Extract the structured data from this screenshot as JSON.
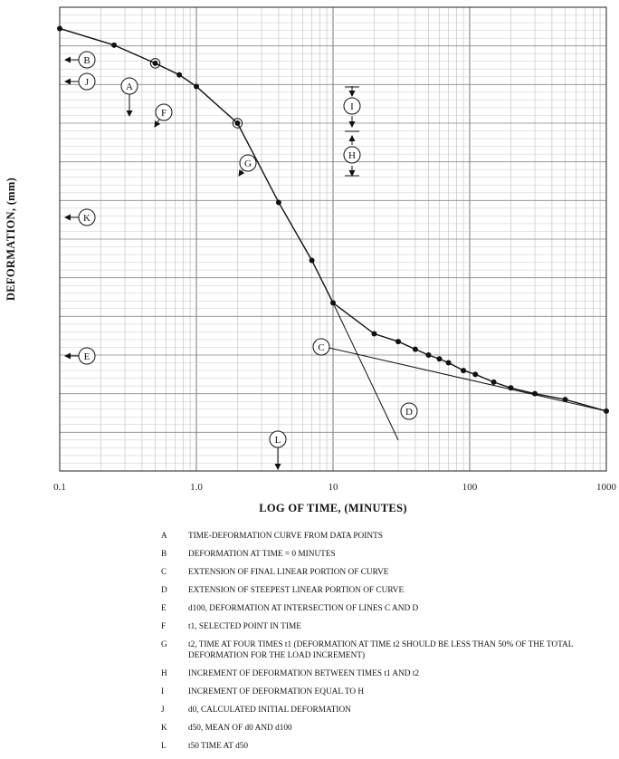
{
  "chart_data": {
    "type": "line",
    "x_scale": "log",
    "xlim": [
      0.1,
      1000
    ],
    "xticks": [
      "0.1",
      "1.0",
      "10",
      "100",
      "1000"
    ],
    "xlabel": "LOG OF TIME, (MINUTES)",
    "ylabel": "DEFORMATION, (mm)",
    "grid": true,
    "series": [
      {
        "points": [
          [
            0.1,
            0.55
          ],
          [
            0.25,
            0.98
          ],
          [
            0.5,
            1.45
          ],
          [
            0.75,
            1.75
          ],
          [
            1.0,
            2.05
          ],
          [
            2.0,
            3.0
          ],
          [
            4.0,
            5.05
          ],
          [
            7.0,
            6.55
          ],
          [
            10.0,
            7.65
          ],
          [
            20.0,
            8.45
          ],
          [
            30.0,
            8.65
          ],
          [
            40.0,
            8.85
          ],
          [
            50.0,
            9.0
          ],
          [
            60.0,
            9.1
          ],
          [
            70.0,
            9.2
          ],
          [
            90.0,
            9.4
          ],
          [
            110.0,
            9.5
          ],
          [
            150.0,
            9.7
          ],
          [
            200.0,
            9.85
          ],
          [
            300.0,
            10.0
          ],
          [
            500.0,
            10.15
          ],
          [
            1000.0,
            10.45
          ]
        ]
      }
    ],
    "lines": [
      {
        "name": "C",
        "points": [
          [
            9.0,
            8.8
          ],
          [
            1000.0,
            10.45
          ]
        ]
      },
      {
        "name": "D",
        "points": [
          [
            10.0,
            7.65
          ],
          [
            30.0,
            11.2
          ]
        ]
      }
    ],
    "callouts": [
      {
        "label": "A"
      },
      {
        "label": "B"
      },
      {
        "label": "C"
      },
      {
        "label": "D"
      },
      {
        "label": "E"
      },
      {
        "label": "F"
      },
      {
        "label": "G"
      },
      {
        "label": "H"
      },
      {
        "label": "I"
      },
      {
        "label": "J"
      },
      {
        "label": "K"
      },
      {
        "label": "L"
      }
    ]
  },
  "legend": [
    {
      "key": "A",
      "text": "TIME-DEFORMATION CURVE FROM DATA POINTS"
    },
    {
      "key": "B",
      "text": "DEFORMATION AT TIME = 0 MINUTES"
    },
    {
      "key": "C",
      "text": "EXTENSION OF FINAL LINEAR PORTION OF CURVE"
    },
    {
      "key": "D",
      "text": "EXTENSION OF STEEPEST LINEAR PORTION OF CURVE"
    },
    {
      "key": "E",
      "text": "d100, DEFORMATION AT INTERSECTION OF LINES C AND D"
    },
    {
      "key": "F",
      "text": "t1, SELECTED POINT IN TIME"
    },
    {
      "key": "G",
      "text": "t2, TIME AT FOUR TIMES t1 (DEFORMATION AT TIME t2 SHOULD BE LESS THAN 50% OF THE TOTAL DEFORMATION FOR THE LOAD INCREMENT)"
    },
    {
      "key": "H",
      "text": "INCREMENT OF DEFORMATION BETWEEN TIMES t1 AND t2"
    },
    {
      "key": "I",
      "text": "INCREMENT OF DEFORMATION EQUAL TO H"
    },
    {
      "key": "J",
      "text": "d0, CALCULATED INITIAL DEFORMATION"
    },
    {
      "key": "K",
      "text": "d50, MEAN OF d0 AND d100"
    },
    {
      "key": "L",
      "text": "t50 TIME AT d50"
    }
  ]
}
